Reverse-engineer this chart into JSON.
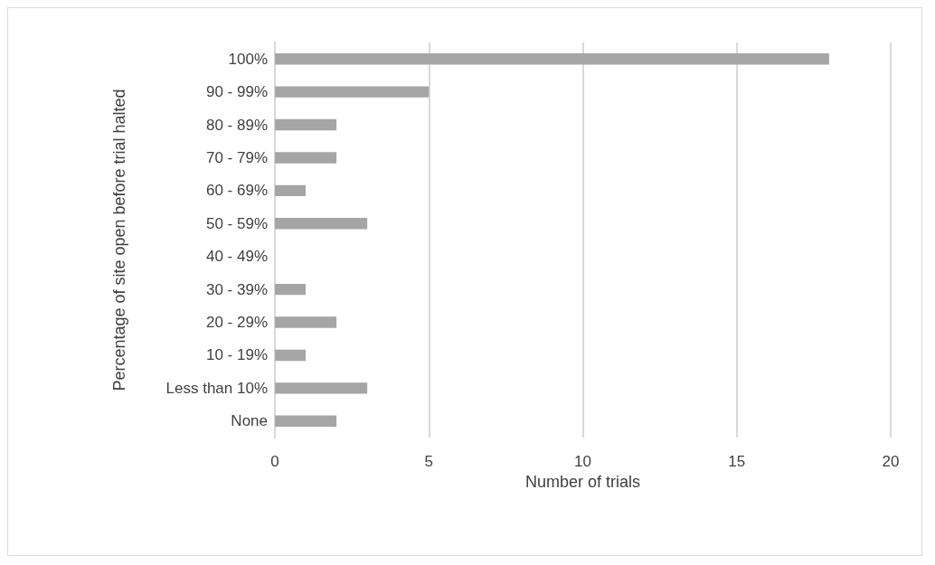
{
  "chart_data": {
    "type": "bar",
    "orientation": "horizontal",
    "categories": [
      "100%",
      "90 - 99%",
      "80 - 89%",
      "70 - 79%",
      "60 - 69%",
      "50 - 59%",
      "40 - 49%",
      "30 - 39%",
      "20 - 29%",
      "10 - 19%",
      "Less than 10%",
      "None"
    ],
    "values": [
      18,
      5,
      2,
      2,
      1,
      3,
      0,
      1,
      2,
      1,
      3,
      2
    ],
    "color": "#a5a5a5",
    "xlabel": "Number of trials",
    "ylabel": "Percentage of site open before trial halted",
    "xlim": [
      0,
      20
    ],
    "xticks": [
      0,
      5,
      10,
      15,
      20
    ],
    "grid": "x"
  }
}
